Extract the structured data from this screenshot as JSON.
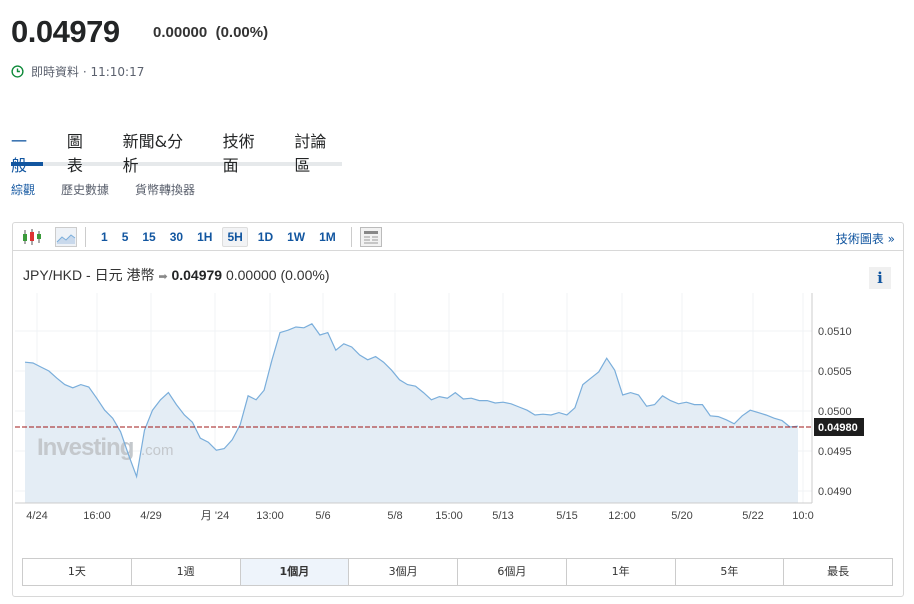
{
  "header": {
    "price": "0.04979",
    "change": "0.00000",
    "change_pct": "(0.00%)",
    "status": "即時資料 · 11:10:17",
    "status_icon": "clock-icon",
    "status_color": "#0f8a3a"
  },
  "tabs": [
    {
      "label": "一般",
      "active": true
    },
    {
      "label": "圖表"
    },
    {
      "label": "新聞&分析"
    },
    {
      "label": "技術面"
    },
    {
      "label": "討論區"
    }
  ],
  "subtabs": [
    {
      "label": "綜觀",
      "active": true
    },
    {
      "label": "歷史數據"
    },
    {
      "label": "貨幣轉換器"
    }
  ],
  "toolbar": {
    "icons": [
      "candlestick-icon",
      "area-chart-icon"
    ],
    "intervals": [
      "1",
      "5",
      "15",
      "30",
      "1H",
      "5H",
      "1D",
      "1W",
      "1M"
    ],
    "selected_interval": "5H",
    "layout_icon": "layout-icon",
    "tech_chart_link": "技術圖表 »"
  },
  "instrument": {
    "name": "JPY/HKD - 日元 港幣",
    "arrow_icon": "arrow-right-icon",
    "price": "0.04979",
    "change": "0.00000",
    "change_pct": "(0.00%)",
    "info": "i"
  },
  "watermark": "Investing",
  "watermark_suffix": ".com",
  "ranges": [
    "1天",
    "1週",
    "1個月",
    "3個月",
    "6個月",
    "1年",
    "5年",
    "最長"
  ],
  "selected_range": "1個月",
  "accent": "#1256a0",
  "chart_data": {
    "type": "area",
    "x_ticks": [
      "4/24",
      "16:00",
      "4/29",
      "月 '24",
      "13:00",
      "5/6",
      "5/8",
      "15:00",
      "5/13",
      "5/15",
      "12:00",
      "5/20",
      "5/22",
      "10:0"
    ],
    "y_ticks": [
      "0.0510",
      "0.0505",
      "0.0500",
      "0.0495",
      "0.0490"
    ],
    "ylim": [
      0.04887,
      0.05135
    ],
    "current_price_line": 0.0498,
    "current_price_label": "0.04980",
    "line_color": "#7aaedb",
    "fill_color": "#e4edf5",
    "values": [
      0.05061,
      0.0506,
      0.05055,
      0.0505,
      0.05041,
      0.05033,
      0.05029,
      0.05033,
      0.0503,
      0.05016,
      0.05001,
      0.04991,
      0.04974,
      0.04945,
      0.04918,
      0.04976,
      0.05001,
      0.05014,
      0.05023,
      0.05008,
      0.04995,
      0.04986,
      0.04966,
      0.04961,
      0.04951,
      0.04953,
      0.04964,
      0.04983,
      0.05019,
      0.05014,
      0.05026,
      0.05064,
      0.05098,
      0.05101,
      0.05105,
      0.05104,
      0.05109,
      0.05095,
      0.05098,
      0.05076,
      0.05084,
      0.0508,
      0.0507,
      0.05064,
      0.05068,
      0.05061,
      0.05051,
      0.05039,
      0.05033,
      0.05031,
      0.05023,
      0.05014,
      0.05018,
      0.05016,
      0.05023,
      0.05015,
      0.05016,
      0.05013,
      0.05013,
      0.0501,
      0.05011,
      0.05009,
      0.05005,
      0.05001,
      0.04995,
      0.04996,
      0.04995,
      0.04998,
      0.04995,
      0.05004,
      0.05033,
      0.05041,
      0.05049,
      0.05066,
      0.05051,
      0.0502,
      0.05023,
      0.0502,
      0.05006,
      0.05008,
      0.05019,
      0.05013,
      0.05009,
      0.05011,
      0.05008,
      0.05008,
      0.04994,
      0.04993,
      0.04989,
      0.04984,
      0.04994,
      0.05001,
      0.04998,
      0.04995,
      0.04991,
      0.04988,
      0.0498,
      0.04981
    ]
  }
}
